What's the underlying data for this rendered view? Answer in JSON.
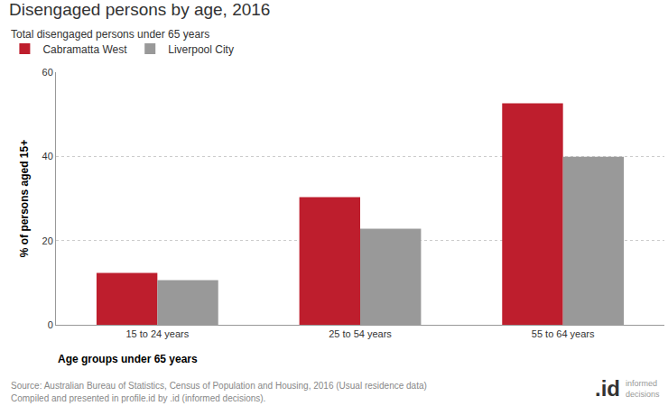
{
  "chart_data": {
    "type": "bar",
    "title": "Disengaged persons by age, 2016",
    "subtitle": "Total disengaged persons under 65 years",
    "xlabel": "Age groups under 65 years",
    "ylabel": "% of persons aged 15+",
    "categories": [
      "15 to 24 years",
      "25 to 54 years",
      "55 to 64 years"
    ],
    "series": [
      {
        "name": "Cabramatta West",
        "color": "#be1e2d",
        "values": [
          12.3,
          30.3,
          52.6
        ]
      },
      {
        "name": "Liverpool City",
        "color": "#999999",
        "values": [
          10.6,
          22.8,
          39.9
        ]
      }
    ],
    "ylim": [
      0,
      60
    ],
    "yticks": [
      0,
      20,
      40,
      60
    ],
    "grid": true,
    "legend": "top-left",
    "source": [
      "Source: Australian Bureau of Statistics, Census of Population and Housing, 2016 (Usual residence data)",
      "Compiled and presented in profile.id by .id (informed decisions)."
    ],
    "logo": [
      ".id",
      "informed decisions"
    ]
  }
}
